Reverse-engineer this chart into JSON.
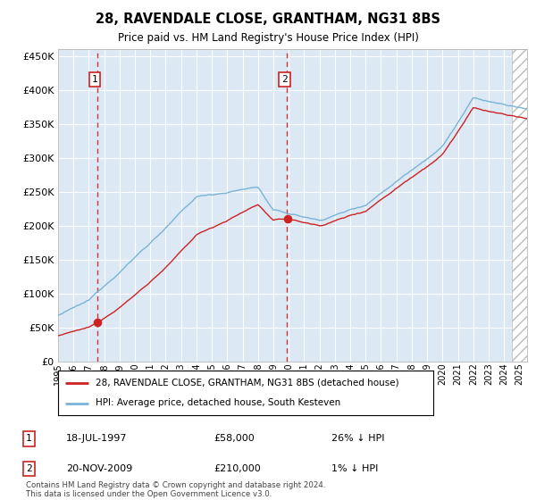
{
  "title": "28, RAVENDALE CLOSE, GRANTHAM, NG31 8BS",
  "subtitle": "Price paid vs. HM Land Registry's House Price Index (HPI)",
  "purchase1_x": 1997.542,
  "purchase1_price": 58000,
  "purchase2_x": 2009.883,
  "purchase2_price": 210000,
  "ylim": [
    0,
    460000
  ],
  "xlim": [
    1995.0,
    2025.5
  ],
  "yticks": [
    0,
    50000,
    100000,
    150000,
    200000,
    250000,
    300000,
    350000,
    400000,
    450000
  ],
  "bg_color": "#dce9f5",
  "hpi_color": "#7ab3d8",
  "price_color": "#cc2222",
  "legend_label1": "28, RAVENDALE CLOSE, GRANTHAM, NG31 8BS (detached house)",
  "legend_label2": "HPI: Average price, detached house, South Kesteven",
  "note1_date": "18-JUL-1997",
  "note1_price": "£58,000",
  "note1_hpi": "26% ↓ HPI",
  "note2_date": "20-NOV-2009",
  "note2_price": "£210,000",
  "note2_hpi": "1% ↓ HPI",
  "footer": "Contains HM Land Registry data © Crown copyright and database right 2024.\nThis data is licensed under the Open Government Licence v3.0.",
  "hatch_start": 2024.5
}
